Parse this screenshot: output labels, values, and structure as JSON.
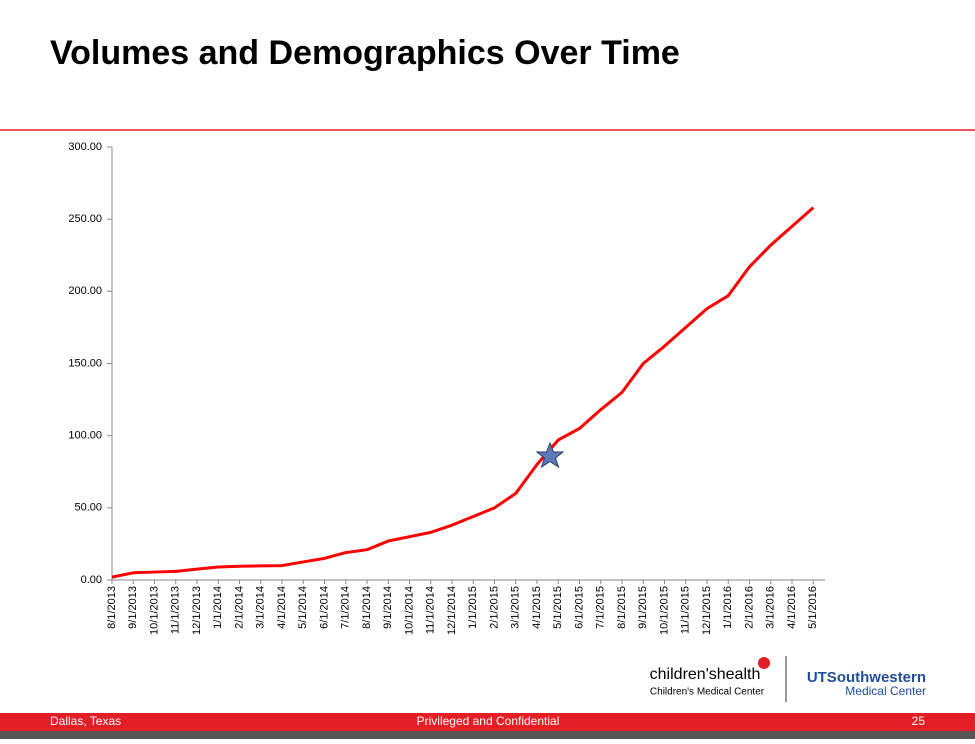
{
  "header": {
    "title": "Volumes and Demographics Over Time"
  },
  "chart_data": {
    "type": "line",
    "categories": [
      "8/1/2013",
      "9/1/2013",
      "10/1/2013",
      "11/1/2013",
      "12/1/2013",
      "1/1/2014",
      "2/1/2014",
      "3/1/2014",
      "4/1/2014",
      "5/1/2014",
      "6/1/2014",
      "7/1/2014",
      "8/1/2014",
      "9/1/2014",
      "10/1/2014",
      "11/1/2014",
      "12/1/2014",
      "1/1/2015",
      "2/1/2015",
      "3/1/2015",
      "4/1/2015",
      "5/1/2015",
      "6/1/2015",
      "7/1/2015",
      "8/1/2015",
      "9/1/2015",
      "10/1/2015",
      "11/1/2015",
      "12/1/2015",
      "1/1/2016",
      "2/1/2016",
      "3/1/2016",
      "4/1/2016",
      "5/1/2016"
    ],
    "values": [
      2,
      5,
      5.5,
      6,
      7.5,
      9,
      9.5,
      9.8,
      10,
      12.5,
      15,
      19,
      21,
      27,
      30,
      33,
      38,
      44,
      50,
      60,
      80,
      97,
      105,
      118,
      130,
      150,
      162,
      175,
      188,
      197,
      217,
      232,
      245,
      258
    ],
    "color": "#ff0000",
    "ylim": [
      0,
      300
    ],
    "yticks": [
      {
        "value": 0,
        "label": "0.00"
      },
      {
        "value": 50,
        "label": "50.00"
      },
      {
        "value": 100,
        "label": "100.00"
      },
      {
        "value": 150,
        "label": "150.00"
      },
      {
        "value": 200,
        "label": "200.00"
      },
      {
        "value": 250,
        "label": "250.00"
      },
      {
        "value": 300,
        "label": "300.00"
      }
    ],
    "grid": false
  },
  "logos": {
    "left_main": "children'shealth",
    "left_sub": "Children's Medical Center",
    "right_main": "UTSouthwestern",
    "right_sub": "Medical Center"
  },
  "footer": {
    "left": "Dallas, Texas",
    "center": "Privileged and Confidential",
    "page": "25"
  }
}
